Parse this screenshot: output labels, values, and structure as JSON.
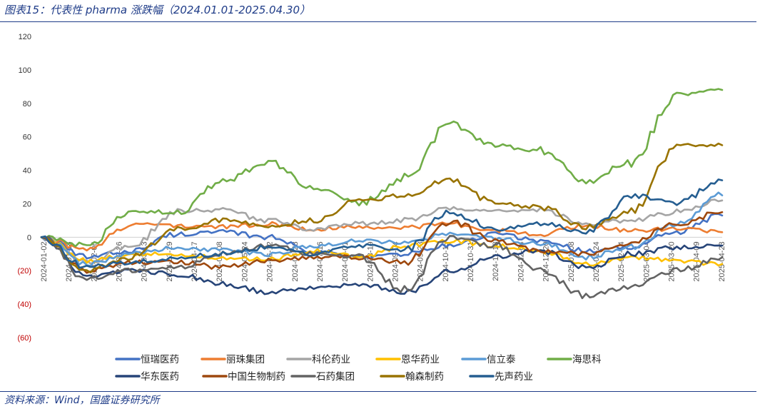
{
  "title": "图表15：代表性 pharma 涨跌幅（2024.01.01-2025.04.30）",
  "source": "资料来源：Wind，国盛证券研究所",
  "colors": {
    "negative_label": "#c00000",
    "rule": "#1f3c88"
  },
  "chart_data": {
    "type": "line",
    "ylim": [
      -60,
      120
    ],
    "yticks": [
      {
        "value": 120,
        "label": "120"
      },
      {
        "value": 100,
        "label": "100"
      },
      {
        "value": 80,
        "label": "80"
      },
      {
        "value": 60,
        "label": "60"
      },
      {
        "value": 40,
        "label": "40"
      },
      {
        "value": 20,
        "label": "20"
      },
      {
        "value": 0,
        "label": "0"
      },
      {
        "value": -20,
        "label": "(20)"
      },
      {
        "value": -40,
        "label": "(40)"
      },
      {
        "value": -60,
        "label": "(60)"
      }
    ],
    "x": [
      "2024-01",
      "2024-02",
      "2024-03",
      "2024-04",
      "2024-05",
      "2024-06",
      "2024-07",
      "2024-08",
      "2024-09",
      "2024-10",
      "2024-11",
      "2024-12",
      "2025-01",
      "2025-02",
      "2025-03",
      "2025-04"
    ],
    "xtick_labels": [
      "2024-01-02",
      "2024-01-18",
      "2024-02-06",
      "2024-02-26",
      "2024-03-13",
      "2024-03-29",
      "2024-04-17",
      "2024-05-08",
      "2024-05-24",
      "2024-06-12",
      "2024-06-28",
      "2024-07-16",
      "2024-08-01",
      "2024-08-19",
      "2024-09-04",
      "2024-09-23",
      "2024-10-15",
      "2024-10-31",
      "2024-11-18",
      "2024-12-04",
      "2024-12-20",
      "2025-01-08",
      "2025-01-24",
      "2025-02-14",
      "2025-03-04",
      "2025-03-20",
      "2025-04-09",
      "2025-04-23"
    ],
    "legend_position": "bottom",
    "grid": false,
    "series": [
      {
        "name": "恒瑞医药",
        "color": "#4472c4",
        "values": [
          0,
          -12,
          -8,
          2,
          3,
          0,
          -8,
          -12,
          -10,
          -5,
          2,
          -2,
          -8,
          -6,
          3,
          13
        ]
      },
      {
        "name": "丽珠集团",
        "color": "#ed7d31",
        "values": [
          0,
          -8,
          8,
          7,
          6,
          8,
          5,
          6,
          6,
          8,
          4,
          2,
          7,
          4,
          5,
          3
        ]
      },
      {
        "name": "科伦药业",
        "color": "#a5a5a5",
        "values": [
          0,
          -15,
          -5,
          16,
          16,
          10,
          5,
          8,
          10,
          17,
          16,
          16,
          8,
          10,
          15,
          22
        ]
      },
      {
        "name": "恩华药业",
        "color": "#ffc000",
        "values": [
          0,
          -14,
          -10,
          -10,
          -13,
          -13,
          -8,
          -12,
          -5,
          -2,
          -5,
          -8,
          -16,
          -12,
          -14,
          -16
        ]
      },
      {
        "name": "信立泰",
        "color": "#5b9bd5",
        "values": [
          0,
          -16,
          -10,
          -6,
          -8,
          -10,
          -5,
          -2,
          -3,
          2,
          -1,
          -4,
          -12,
          -6,
          8,
          25
        ]
      },
      {
        "name": "海思科",
        "color": "#70ad47",
        "values": [
          0,
          -5,
          15,
          15,
          33,
          45,
          30,
          20,
          35,
          68,
          55,
          52,
          33,
          45,
          85,
          88
        ]
      },
      {
        "name": "华东医药",
        "color": "#264478",
        "values": [
          0,
          -24,
          -20,
          -22,
          -28,
          -33,
          -30,
          -28,
          -33,
          -20,
          -12,
          -8,
          -18,
          -10,
          -6,
          -5
        ]
      },
      {
        "name": "中国生物制药",
        "color": "#9e480e",
        "values": [
          0,
          -20,
          -15,
          -15,
          -18,
          -14,
          -12,
          -12,
          -15,
          10,
          -2,
          -8,
          -10,
          -3,
          8,
          15
        ]
      },
      {
        "name": "石药集团",
        "color": "#636363",
        "values": [
          0,
          -25,
          -20,
          -18,
          -10,
          -5,
          -10,
          -12,
          -32,
          0,
          -5,
          -20,
          -35,
          -30,
          -20,
          -12
        ]
      },
      {
        "name": "翰森制药",
        "color": "#997300",
        "values": [
          0,
          -20,
          -12,
          5,
          10,
          7,
          10,
          22,
          25,
          35,
          20,
          18,
          6,
          15,
          55,
          55
        ]
      },
      {
        "name": "先声药业",
        "color": "#255e91",
        "values": [
          0,
          -18,
          -15,
          -12,
          -10,
          -6,
          -10,
          -5,
          -8,
          15,
          5,
          8,
          3,
          25,
          20,
          34
        ]
      }
    ]
  }
}
